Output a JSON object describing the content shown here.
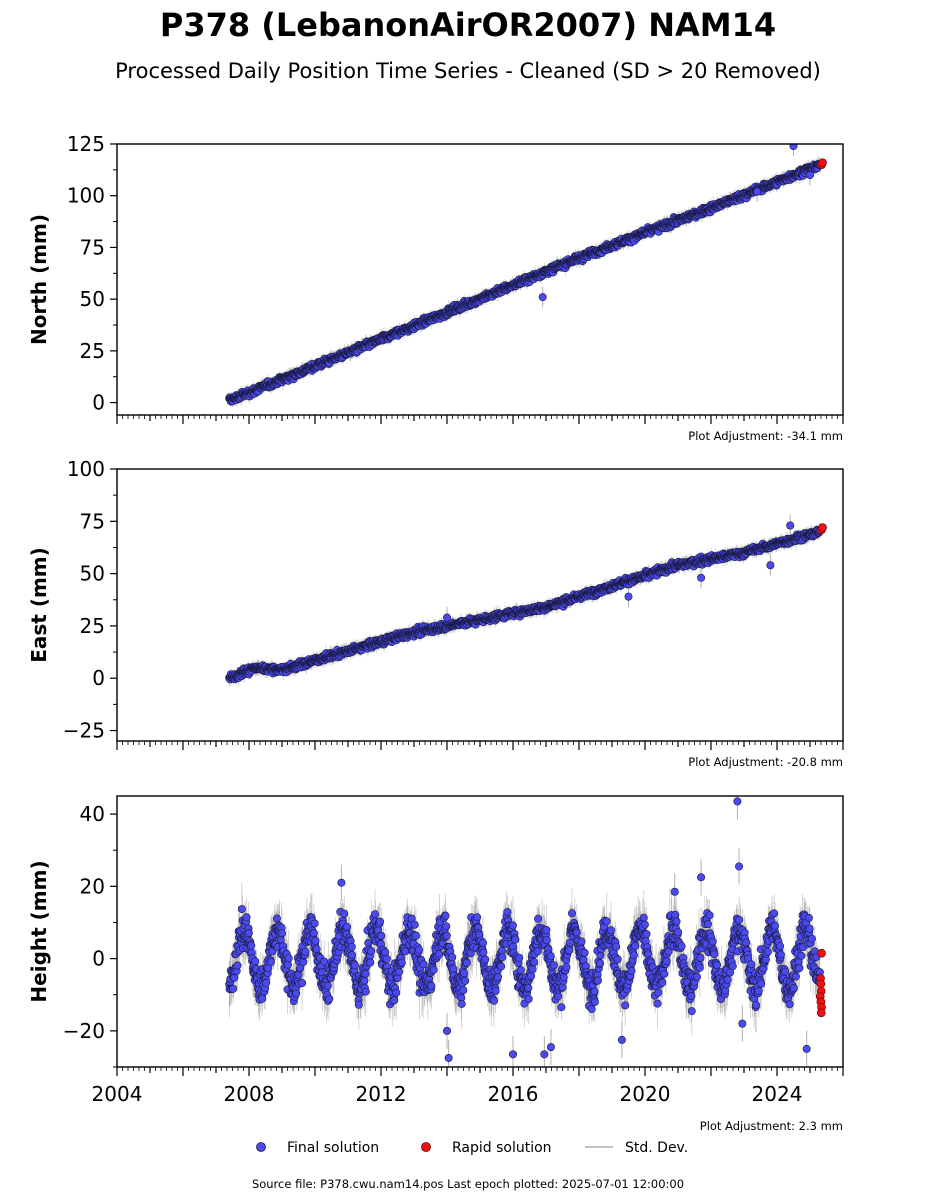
{
  "title": "P378 (LebanonAirOR2007) NAM14",
  "subtitle": "Processed Daily Position Time Series - Cleaned (SD > 20 Removed)",
  "legend": {
    "final": "Final solution",
    "rapid": "Rapid solution",
    "stddev": "Std. Dev."
  },
  "footer": "Source file: P378.cwu.nam14.pos  Last epoch plotted: 2025-07-01 12:00:00",
  "colors": {
    "final": "#4a4aef",
    "rapid": "#ee1111",
    "stddev": "#b0b0b0",
    "marker_edge": "#1a1a40"
  },
  "chart_data": [
    {
      "type": "scatter",
      "ylabel": "North (mm)",
      "xlim": [
        2004.0,
        2026.0
      ],
      "ylim": [
        -6,
        125
      ],
      "yticks": [
        0,
        25,
        50,
        75,
        100,
        125
      ],
      "ytick_labels": [
        "0",
        "25",
        "50",
        "75",
        "100",
        "125"
      ],
      "x_start": 2007.4,
      "x_end": 2025.3,
      "trend": [
        {
          "x": 2007.4,
          "y": 1
        },
        {
          "x": 2013.0,
          "y": 37
        },
        {
          "x": 2018.0,
          "y": 70
        },
        {
          "x": 2022.0,
          "y": 94
        },
        {
          "x": 2025.3,
          "y": 115
        }
      ],
      "outliers": [
        {
          "x": 2016.9,
          "y": 51
        },
        {
          "x": 2023.4,
          "y": 102
        },
        {
          "x": 2024.5,
          "y": 124
        },
        {
          "x": 2025.0,
          "y": 110
        }
      ],
      "rapid_points": [
        {
          "x": 2025.35,
          "y": 115
        },
        {
          "x": 2025.38,
          "y": 116
        }
      ],
      "adjustment": "Plot Adjustment: -34.1 mm"
    },
    {
      "type": "scatter",
      "ylabel": "East (mm)",
      "xlim": [
        2004.0,
        2026.0
      ],
      "ylim": [
        -30,
        100
      ],
      "yticks": [
        -25,
        0,
        25,
        50,
        75,
        100
      ],
      "ytick_labels": [
        "−25",
        "0",
        "25",
        "50",
        "75",
        "100"
      ],
      "x_start": 2007.4,
      "x_end": 2025.3,
      "trend": [
        {
          "x": 2007.4,
          "y": 0
        },
        {
          "x": 2008.2,
          "y": 5
        },
        {
          "x": 2009.0,
          "y": 4
        },
        {
          "x": 2013.0,
          "y": 22
        },
        {
          "x": 2017.0,
          "y": 34
        },
        {
          "x": 2021.0,
          "y": 54
        },
        {
          "x": 2023.0,
          "y": 60
        },
        {
          "x": 2025.3,
          "y": 70
        }
      ],
      "outliers": [
        {
          "x": 2014.0,
          "y": 29
        },
        {
          "x": 2019.5,
          "y": 39
        },
        {
          "x": 2021.7,
          "y": 48
        },
        {
          "x": 2023.8,
          "y": 54
        },
        {
          "x": 2024.4,
          "y": 73
        }
      ],
      "rapid_points": [
        {
          "x": 2025.35,
          "y": 71
        },
        {
          "x": 2025.38,
          "y": 72
        }
      ],
      "adjustment": "Plot Adjustment: -20.8 mm"
    },
    {
      "type": "scatter",
      "ylabel": "Height (mm)",
      "xlim": [
        2004.0,
        2026.0
      ],
      "ylim": [
        -30,
        45
      ],
      "yticks": [
        -20,
        0,
        20,
        40
      ],
      "ytick_labels": [
        "−20",
        "0",
        "20",
        "40"
      ],
      "xticks": [
        2004,
        2008,
        2012,
        2016,
        2020,
        2024
      ],
      "xtick_labels": [
        "2004",
        "2008",
        "2012",
        "2016",
        "2020",
        "2024"
      ],
      "x_start": 2007.4,
      "x_end": 2025.3,
      "seasonal_amplitude_mm": 8,
      "outliers": [
        {
          "x": 2010.8,
          "y": 21
        },
        {
          "x": 2014.0,
          "y": -20
        },
        {
          "x": 2014.05,
          "y": -27.5
        },
        {
          "x": 2016.0,
          "y": -26.5
        },
        {
          "x": 2016.95,
          "y": -26.5
        },
        {
          "x": 2017.15,
          "y": -24.5
        },
        {
          "x": 2019.3,
          "y": -22.5
        },
        {
          "x": 2020.9,
          "y": 18.5
        },
        {
          "x": 2021.7,
          "y": 22.5
        },
        {
          "x": 2022.8,
          "y": 43.5
        },
        {
          "x": 2022.85,
          "y": 25.5
        },
        {
          "x": 2022.95,
          "y": -18
        },
        {
          "x": 2024.9,
          "y": -25
        }
      ],
      "rapid_points": [
        {
          "x": 2025.35,
          "y": 1.5
        },
        {
          "x": 2025.32,
          "y": -5.5
        },
        {
          "x": 2025.33,
          "y": -7
        },
        {
          "x": 2025.34,
          "y": -9
        },
        {
          "x": 2025.31,
          "y": -10.5
        },
        {
          "x": 2025.33,
          "y": -12
        },
        {
          "x": 2025.35,
          "y": -13.5
        },
        {
          "x": 2025.34,
          "y": -15
        }
      ],
      "adjustment": "Plot Adjustment: 2.3 mm"
    }
  ]
}
